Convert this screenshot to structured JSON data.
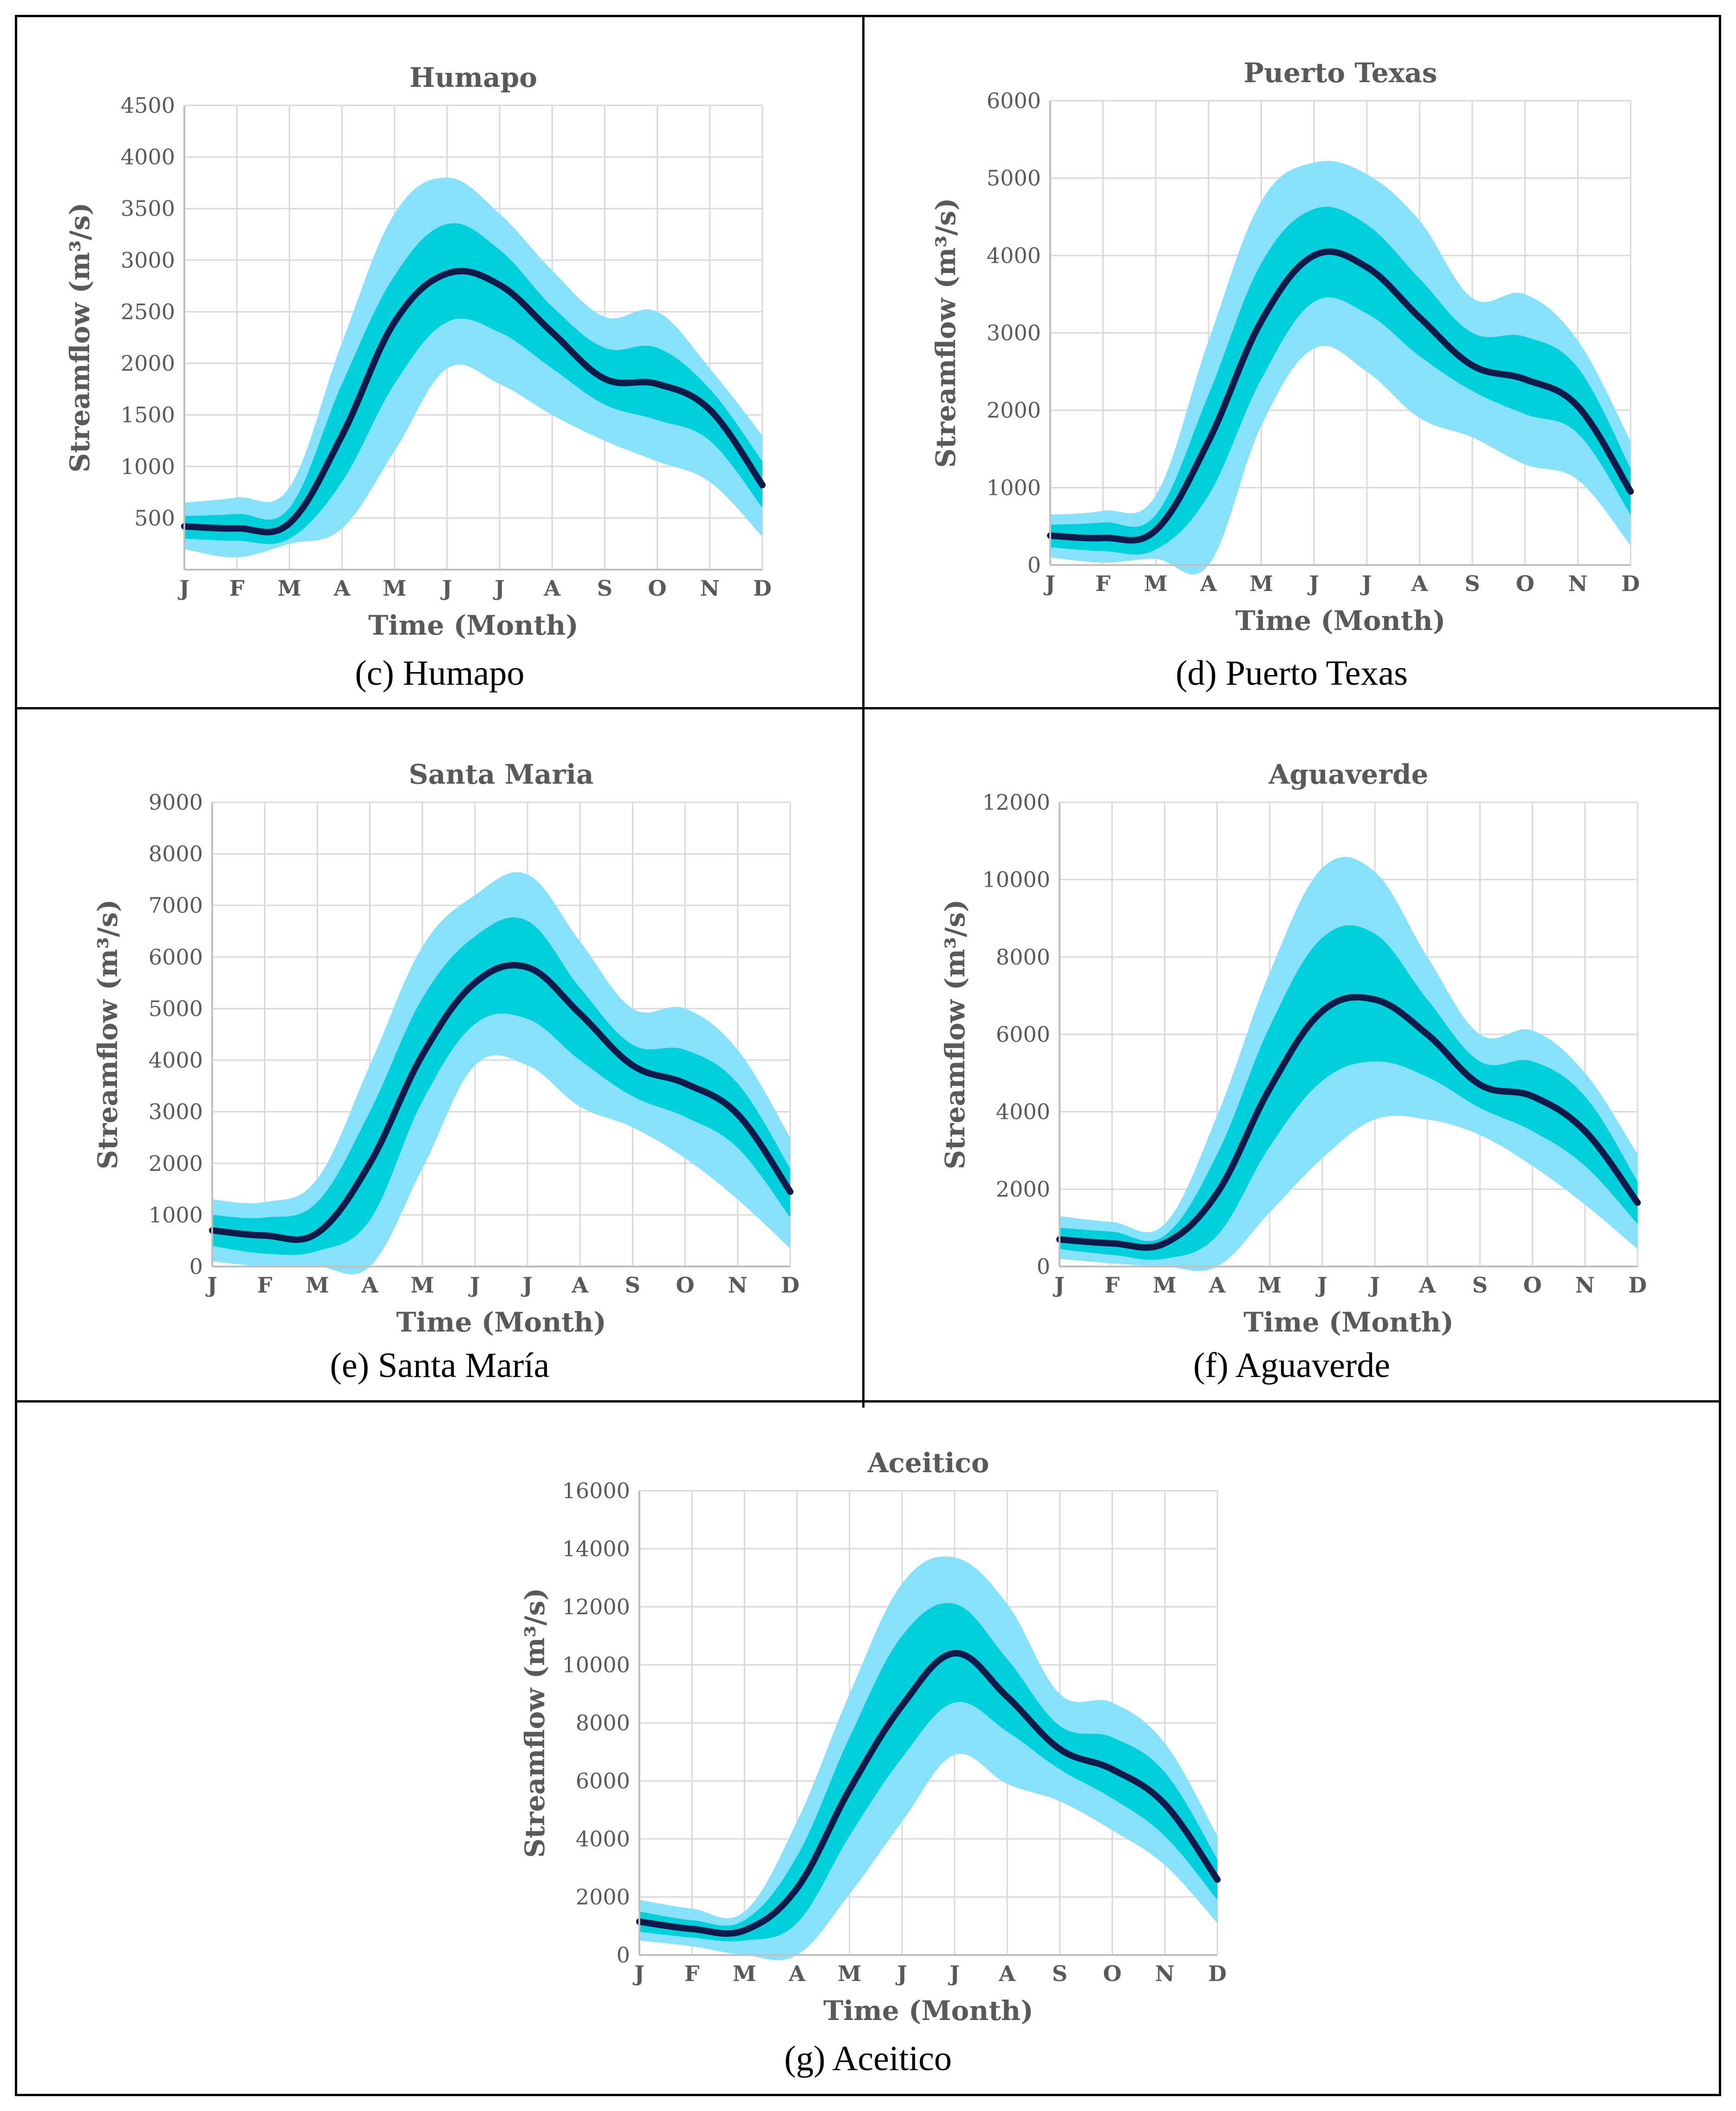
{
  "chart_data": [
    {
      "id": "c",
      "type": "area",
      "title": "Humapo",
      "caption": "(c) Humapo",
      "xlabel": "Time (Month)",
      "ylabel": "Streamflow (m³/s)",
      "categories": [
        "J",
        "F",
        "M",
        "A",
        "M",
        "J",
        "J",
        "A",
        "S",
        "O",
        "N",
        "D"
      ],
      "yticks": [
        500,
        1000,
        1500,
        2000,
        2500,
        3000,
        3500,
        4000,
        4500
      ],
      "ylim": [
        0,
        4500
      ],
      "series": [
        {
          "name": "outer_upper",
          "values": [
            650,
            700,
            800,
            2200,
            3450,
            3800,
            3450,
            2900,
            2450,
            2500,
            1950,
            1300
          ]
        },
        {
          "name": "inner_upper",
          "values": [
            520,
            540,
            600,
            1800,
            2850,
            3350,
            3100,
            2550,
            2150,
            2150,
            1750,
            1050
          ]
        },
        {
          "name": "median",
          "values": [
            420,
            400,
            450,
            1300,
            2400,
            2870,
            2760,
            2300,
            1850,
            1800,
            1550,
            820
          ]
        },
        {
          "name": "inner_lower",
          "values": [
            300,
            280,
            300,
            850,
            1800,
            2400,
            2300,
            1950,
            1600,
            1450,
            1250,
            600
          ]
        },
        {
          "name": "outer_lower",
          "values": [
            200,
            120,
            250,
            400,
            1150,
            1950,
            1800,
            1500,
            1250,
            1050,
            850,
            320
          ]
        }
      ]
    },
    {
      "id": "d",
      "type": "area",
      "title": "Puerto Texas",
      "caption": "(d) Puerto Texas",
      "xlabel": "Time (Month)",
      "ylabel": "Streamflow (m³/s)",
      "categories": [
        "J",
        "F",
        "M",
        "A",
        "M",
        "J",
        "J",
        "A",
        "S",
        "O",
        "N",
        "D"
      ],
      "yticks": [
        0,
        1000,
        2000,
        3000,
        4000,
        5000,
        6000
      ],
      "ylim": [
        0,
        6000
      ],
      "series": [
        {
          "name": "outer_upper",
          "values": [
            650,
            700,
            900,
            2900,
            4700,
            5200,
            5050,
            4450,
            3450,
            3500,
            2900,
            1600
          ]
        },
        {
          "name": "inner_upper",
          "values": [
            520,
            550,
            650,
            2200,
            3900,
            4600,
            4400,
            3700,
            3000,
            2950,
            2550,
            1250
          ]
        },
        {
          "name": "median",
          "values": [
            380,
            350,
            450,
            1600,
            3150,
            4000,
            3850,
            3200,
            2580,
            2400,
            2050,
            950
          ]
        },
        {
          "name": "inner_lower",
          "values": [
            230,
            180,
            200,
            900,
            2400,
            3400,
            3250,
            2700,
            2250,
            1950,
            1700,
            650
          ]
        },
        {
          "name": "outer_lower",
          "values": [
            100,
            30,
            80,
            0,
            1800,
            2800,
            2500,
            1900,
            1650,
            1300,
            1100,
            250
          ]
        }
      ]
    },
    {
      "id": "e",
      "type": "area",
      "title": "Santa Maria",
      "caption": "(e) Santa María",
      "xlabel": "Time (Month)",
      "ylabel": "Streamflow (m³/s)",
      "categories": [
        "J",
        "F",
        "M",
        "A",
        "M",
        "J",
        "J",
        "A",
        "S",
        "O",
        "N",
        "D"
      ],
      "yticks": [
        0,
        1000,
        2000,
        3000,
        4000,
        5000,
        6000,
        7000,
        8000,
        9000
      ],
      "ylim": [
        0,
        9000
      ],
      "series": [
        {
          "name": "outer_upper",
          "values": [
            1300,
            1250,
            1700,
            3900,
            6200,
            7200,
            7600,
            6300,
            5000,
            5000,
            4200,
            2500
          ]
        },
        {
          "name": "inner_upper",
          "values": [
            1000,
            950,
            1250,
            3000,
            5200,
            6400,
            6700,
            5400,
            4300,
            4200,
            3550,
            1900
          ]
        },
        {
          "name": "median",
          "values": [
            700,
            600,
            650,
            2000,
            4100,
            5500,
            5800,
            4900,
            3900,
            3550,
            2950,
            1450
          ]
        },
        {
          "name": "inner_lower",
          "values": [
            400,
            250,
            300,
            900,
            3200,
            4700,
            4800,
            4000,
            3300,
            2900,
            2300,
            950
          ]
        },
        {
          "name": "outer_lower",
          "values": [
            100,
            0,
            0,
            0,
            1900,
            3900,
            3900,
            3100,
            2700,
            2100,
            1300,
            350
          ]
        }
      ]
    },
    {
      "id": "f",
      "type": "area",
      "title": "Aguaverde",
      "caption": "(f) Aguaverde",
      "xlabel": "Time (Month)",
      "ylabel": "Streamflow (m³/s)",
      "categories": [
        "J",
        "F",
        "M",
        "A",
        "M",
        "J",
        "J",
        "A",
        "S",
        "O",
        "N",
        "D"
      ],
      "yticks": [
        0,
        2000,
        4000,
        6000,
        8000,
        10000,
        12000
      ],
      "ylim": [
        0,
        12000
      ],
      "series": [
        {
          "name": "outer_upper",
          "values": [
            1300,
            1150,
            1100,
            3900,
            7600,
            10300,
            10200,
            8000,
            6000,
            6100,
            5000,
            2900
          ]
        },
        {
          "name": "inner_upper",
          "values": [
            1000,
            900,
            800,
            2900,
            6200,
            8500,
            8600,
            6900,
            5300,
            5300,
            4400,
            2200
          ]
        },
        {
          "name": "median",
          "values": [
            700,
            600,
            600,
            1900,
            4600,
            6600,
            6900,
            6000,
            4700,
            4400,
            3500,
            1650
          ]
        },
        {
          "name": "inner_lower",
          "values": [
            450,
            300,
            200,
            800,
            3100,
            4800,
            5300,
            4900,
            4100,
            3500,
            2600,
            1100
          ]
        },
        {
          "name": "outer_lower",
          "values": [
            200,
            80,
            0,
            0,
            1400,
            2800,
            3800,
            3800,
            3400,
            2600,
            1600,
            450
          ]
        }
      ]
    },
    {
      "id": "g",
      "type": "area",
      "title": "Aceitico",
      "caption": "(g) Aceitico",
      "xlabel": "Time (Month)",
      "ylabel": "Streamflow (m³/s)",
      "categories": [
        "J",
        "F",
        "M",
        "A",
        "M",
        "J",
        "J",
        "A",
        "S",
        "O",
        "N",
        "D"
      ],
      "yticks": [
        0,
        2000,
        4000,
        6000,
        8000,
        10000,
        12000,
        14000,
        16000
      ],
      "ylim": [
        0,
        16000
      ],
      "series": [
        {
          "name": "outer_upper",
          "values": [
            1900,
            1600,
            1500,
            4600,
            9000,
            12800,
            13700,
            12100,
            9000,
            8700,
            7300,
            4100
          ]
        },
        {
          "name": "inner_upper",
          "values": [
            1500,
            1200,
            1200,
            3400,
            7500,
            11000,
            12100,
            10200,
            7900,
            7500,
            6300,
            3300
          ]
        },
        {
          "name": "median",
          "values": [
            1150,
            900,
            850,
            2300,
            5700,
            8600,
            10400,
            8900,
            7100,
            6400,
            5200,
            2600
          ]
        },
        {
          "name": "inner_lower",
          "values": [
            800,
            600,
            500,
            1100,
            4100,
            6800,
            8700,
            7700,
            6400,
            5400,
            4100,
            1900
          ]
        },
        {
          "name": "outer_lower",
          "values": [
            500,
            300,
            0,
            0,
            2100,
            4600,
            6900,
            5900,
            5300,
            4300,
            3100,
            1100
          ]
        }
      ]
    }
  ],
  "colors": {
    "outer_band": "#87e1fb",
    "inner_band": "#00d0dc",
    "median_line": "#0d1a4a",
    "grid": "#d9d9d9",
    "axis": "#bfbfbf",
    "text": "#595959"
  }
}
